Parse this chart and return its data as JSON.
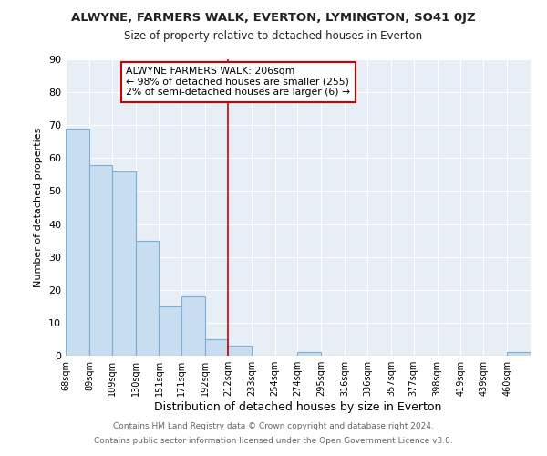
{
  "title": "ALWYNE, FARMERS WALK, EVERTON, LYMINGTON, SO41 0JZ",
  "subtitle": "Size of property relative to detached houses in Everton",
  "xlabel": "Distribution of detached houses by size in Everton",
  "ylabel": "Number of detached properties",
  "bar_color": "#c8ddf0",
  "bar_edge_color": "#7ab0d4",
  "reference_line_x": 212,
  "reference_line_color": "#cc0000",
  "annotation_title": "ALWYNE FARMERS WALK: 206sqm",
  "annotation_line1": "← 98% of detached houses are smaller (255)",
  "annotation_line2": "2% of semi-detached houses are larger (6) →",
  "bins": [
    68,
    89,
    109,
    130,
    151,
    171,
    192,
    212,
    233,
    254,
    274,
    295,
    316,
    336,
    357,
    377,
    398,
    419,
    439,
    460,
    481
  ],
  "counts": [
    69,
    58,
    56,
    35,
    15,
    18,
    5,
    3,
    0,
    0,
    1,
    0,
    0,
    0,
    0,
    0,
    0,
    0,
    0,
    1
  ],
  "ylim": [
    0,
    90
  ],
  "yticks": [
    0,
    10,
    20,
    30,
    40,
    50,
    60,
    70,
    80,
    90
  ],
  "footer1": "Contains HM Land Registry data © Crown copyright and database right 2024.",
  "footer2": "Contains public sector information licensed under the Open Government Licence v3.0.",
  "background_color": "#ffffff",
  "plot_bg_color": "#e8eef5",
  "grid_color": "#ffffff",
  "title_fontsize": 9.5,
  "subtitle_fontsize": 8.5
}
